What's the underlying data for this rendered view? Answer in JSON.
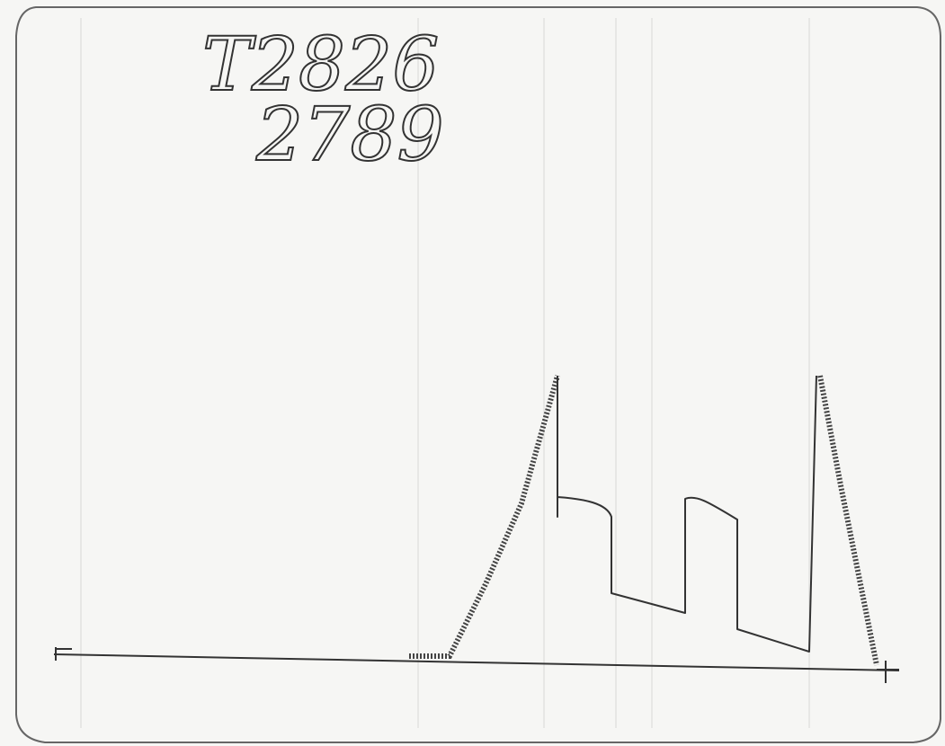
{
  "note": {
    "line1": "T2826",
    "line2": "2789"
  }
}
